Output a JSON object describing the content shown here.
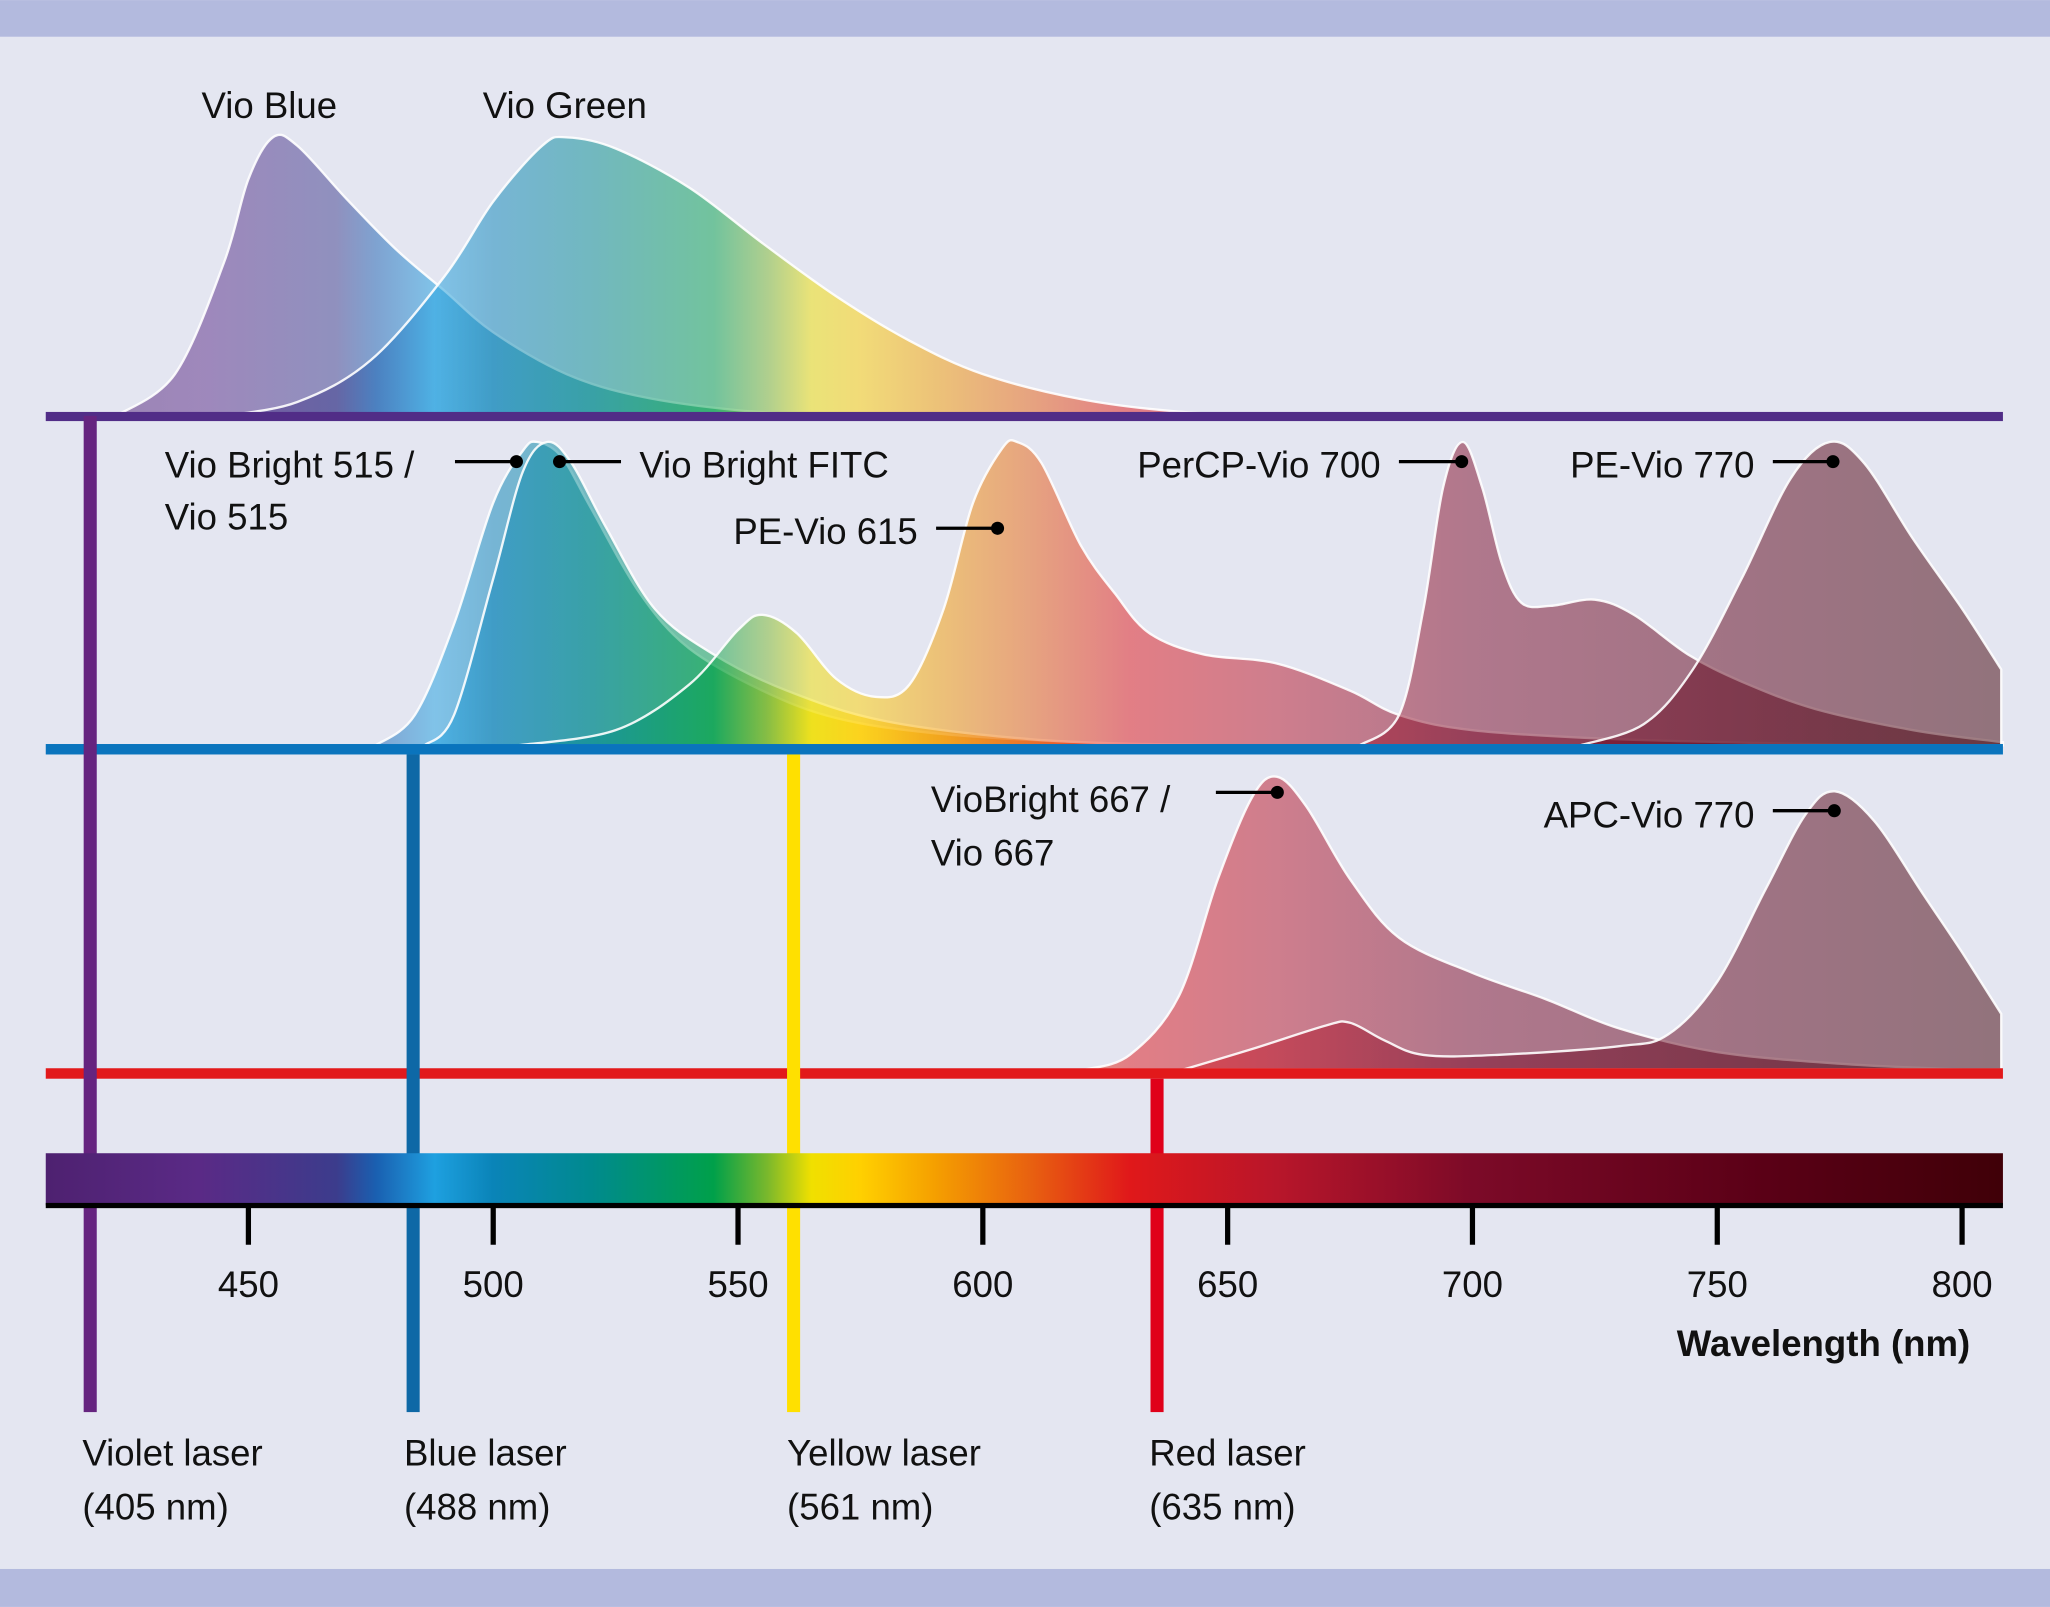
{
  "colors": {
    "background": "#e4e6f1",
    "frame_band": "#b3bade",
    "violet": "#512d87",
    "blue": "#0a74bd",
    "yellow": "#ffe000",
    "red": "#e2191b"
  },
  "chart_data": {
    "type": "area",
    "xlabel": "Wavelength (nm)",
    "xlim": [
      408,
      808
    ],
    "x_ticks": [
      450,
      500,
      550,
      600,
      650,
      700,
      750,
      800
    ],
    "x_tick_labels": [
      "450",
      "500",
      "550",
      "600",
      "650",
      "700",
      "750",
      "800"
    ],
    "grid": false,
    "y_axis": "relative emission intensity (unlabeled)",
    "panels": [
      {
        "laser": "violet",
        "series": [
          {
            "name": "Vio Blue",
            "peak_nm": 455,
            "points": [
              [
                423,
                0
              ],
              [
                435,
                0.15
              ],
              [
                445,
                0.55
              ],
              [
                450,
                0.85
              ],
              [
                455,
                1.0
              ],
              [
                460,
                0.97
              ],
              [
                470,
                0.78
              ],
              [
                480,
                0.6
              ],
              [
                490,
                0.45
              ],
              [
                500,
                0.3
              ],
              [
                515,
                0.15
              ],
              [
                530,
                0.07
              ],
              [
                550,
                0.02
              ],
              [
                570,
                0
              ]
            ]
          },
          {
            "name": "Vio Green",
            "peak_nm": 515,
            "points": [
              [
                445,
                0
              ],
              [
                460,
                0.05
              ],
              [
                475,
                0.2
              ],
              [
                490,
                0.5
              ],
              [
                500,
                0.77
              ],
              [
                510,
                0.97
              ],
              [
                515,
                1.0
              ],
              [
                525,
                0.96
              ],
              [
                540,
                0.82
              ],
              [
                555,
                0.62
              ],
              [
                570,
                0.43
              ],
              [
                585,
                0.27
              ],
              [
                600,
                0.15
              ],
              [
                620,
                0.06
              ],
              [
                640,
                0.015
              ],
              [
                660,
                0
              ]
            ]
          }
        ]
      },
      {
        "laser": "blue / yellow",
        "series": [
          {
            "name": "Vio Bright 515 / Vio 515",
            "peak_nm": 509,
            "points": [
              [
                476,
                0
              ],
              [
                484,
                0.1
              ],
              [
                492,
                0.4
              ],
              [
                500,
                0.8
              ],
              [
                506,
                0.97
              ],
              [
                509,
                1.0
              ],
              [
                514,
                0.95
              ],
              [
                520,
                0.78
              ],
              [
                530,
                0.5
              ],
              [
                540,
                0.32
              ],
              [
                555,
                0.18
              ],
              [
                570,
                0.09
              ],
              [
                590,
                0.04
              ],
              [
                620,
                0.01
              ],
              [
                650,
                0
              ]
            ]
          },
          {
            "name": "Vio Bright FITC",
            "peak_nm": 511,
            "points": [
              [
                486,
                0
              ],
              [
                492,
                0.1
              ],
              [
                500,
                0.55
              ],
              [
                506,
                0.9
              ],
              [
                511,
                1.0
              ],
              [
                516,
                0.93
              ],
              [
                523,
                0.72
              ],
              [
                533,
                0.45
              ],
              [
                545,
                0.3
              ],
              [
                560,
                0.18
              ],
              [
                580,
                0.08
              ],
              [
                610,
                0.02
              ],
              [
                640,
                0
              ]
            ]
          },
          {
            "name": "PE-Vio 615",
            "peak_nm": 607,
            "points": [
              [
                505,
                0
              ],
              [
                525,
                0.05
              ],
              [
                540,
                0.2
              ],
              [
                550,
                0.38
              ],
              [
                555,
                0.43
              ],
              [
                562,
                0.37
              ],
              [
                570,
                0.22
              ],
              [
                578,
                0.16
              ],
              [
                585,
                0.2
              ],
              [
                592,
                0.45
              ],
              [
                598,
                0.8
              ],
              [
                604,
                0.98
              ],
              [
                607,
                1.0
              ],
              [
                612,
                0.93
              ],
              [
                620,
                0.66
              ],
              [
                627,
                0.5
              ],
              [
                634,
                0.37
              ],
              [
                645,
                0.3
              ],
              [
                660,
                0.27
              ],
              [
                675,
                0.18
              ],
              [
                685,
                0.1
              ],
              [
                700,
                0.05
              ],
              [
                730,
                0.02
              ],
              [
                780,
                0
              ]
            ]
          },
          {
            "name": "PerCP-Vio 700",
            "peak_nm": 698,
            "points": [
              [
                677,
                0
              ],
              [
                685,
                0.1
              ],
              [
                690,
                0.45
              ],
              [
                694,
                0.85
              ],
              [
                698,
                1.0
              ],
              [
                702,
                0.85
              ],
              [
                706,
                0.6
              ],
              [
                710,
                0.47
              ],
              [
                716,
                0.46
              ],
              [
                725,
                0.48
              ],
              [
                733,
                0.43
              ],
              [
                744,
                0.3
              ],
              [
                755,
                0.21
              ],
              [
                770,
                0.12
              ],
              [
                790,
                0.05
              ],
              [
                810,
                0.01
              ]
            ]
          },
          {
            "name": "PE-Vio 770",
            "peak_nm": 773,
            "points": [
              [
                722,
                0
              ],
              [
                735,
                0.07
              ],
              [
                745,
                0.25
              ],
              [
                755,
                0.55
              ],
              [
                765,
                0.88
              ],
              [
                773,
                1.0
              ],
              [
                780,
                0.93
              ],
              [
                790,
                0.68
              ],
              [
                800,
                0.45
              ],
              [
                808,
                0.25
              ]
            ]
          }
        ]
      },
      {
        "laser": "red",
        "series": [
          {
            "name": "VioBright 667 / Vio 667",
            "peak_nm": 660,
            "points": [
              [
                621,
                0
              ],
              [
                630,
                0.05
              ],
              [
                640,
                0.25
              ],
              [
                648,
                0.65
              ],
              [
                655,
                0.93
              ],
              [
                660,
                1.0
              ],
              [
                666,
                0.9
              ],
              [
                675,
                0.65
              ],
              [
                685,
                0.45
              ],
              [
                700,
                0.33
              ],
              [
                715,
                0.24
              ],
              [
                730,
                0.14
              ],
              [
                750,
                0.06
              ],
              [
                775,
                0.02
              ],
              [
                800,
                0
              ]
            ]
          },
          {
            "name": "APC-Vio 770",
            "peak_nm": 774,
            "points": [
              [
                641,
                0
              ],
              [
                655,
                0.07
              ],
              [
                670,
                0.15
              ],
              [
                675,
                0.16
              ],
              [
                682,
                0.1
              ],
              [
                690,
                0.05
              ],
              [
                705,
                0.05
              ],
              [
                730,
                0.08
              ],
              [
                740,
                0.12
              ],
              [
                750,
                0.3
              ],
              [
                760,
                0.62
              ],
              [
                768,
                0.87
              ],
              [
                774,
                0.95
              ],
              [
                782,
                0.85
              ],
              [
                792,
                0.6
              ],
              [
                800,
                0.4
              ],
              [
                808,
                0.19
              ]
            ]
          }
        ]
      }
    ],
    "lasers": [
      {
        "name": "Violet laser",
        "wavelength": "(405 nm)",
        "nm": 405,
        "color": "#65247f"
      },
      {
        "name": "Blue laser",
        "wavelength": "(488 nm)",
        "nm": 488,
        "color": "#0e68a6"
      },
      {
        "name": "Yellow laser",
        "wavelength": "(561 nm)",
        "nm": 561,
        "color": "#ffe000"
      },
      {
        "name": "Red laser",
        "wavelength": "(635 nm)",
        "nm": 635,
        "color": "#e0001a"
      }
    ]
  },
  "labels": {
    "vio_blue": "Vio Blue",
    "vio_green": "Vio Green",
    "vb515_l1": "Vio Bright 515 /",
    "vb515_l2": "Vio 515",
    "vb_fitc": "Vio Bright FITC",
    "pe_vio_615": "PE-Vio 615",
    "percp_vio_700": "PerCP-Vio 700",
    "pe_vio_770": "PE-Vio 770",
    "vb667_l1": "VioBright 667 /",
    "vb667_l2": "Vio 667",
    "apc_vio_770": "APC-Vio 770"
  }
}
